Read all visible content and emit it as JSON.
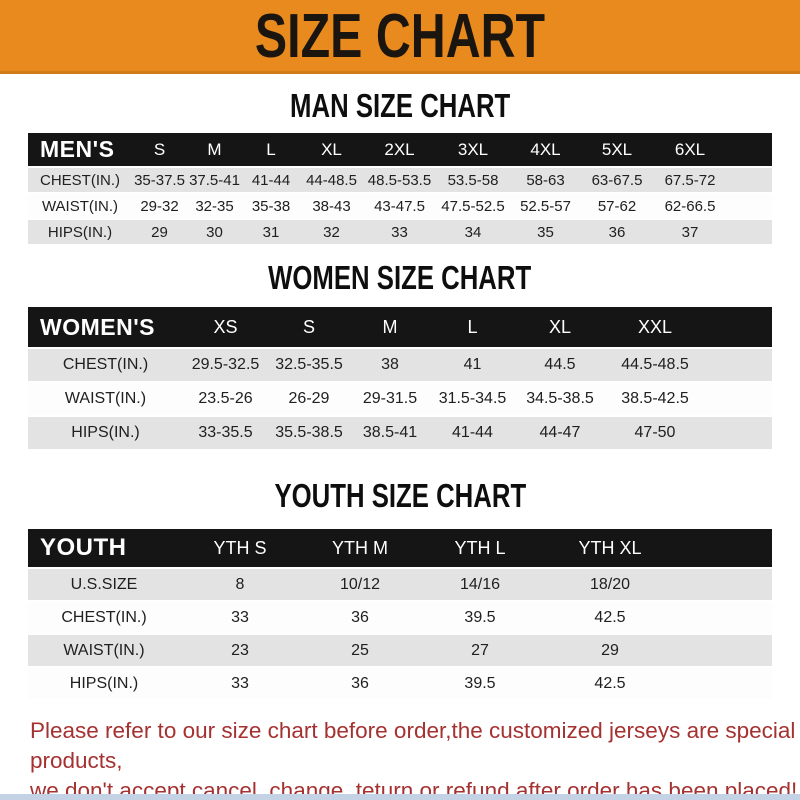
{
  "banner": {
    "title": "SIZE CHART"
  },
  "chart_data": [
    {
      "type": "table",
      "title": "MAN SIZE CHART",
      "columns": [
        "MEN'S",
        "S",
        "M",
        "L",
        "XL",
        "2XL",
        "3XL",
        "4XL",
        "5XL",
        "6XL"
      ],
      "rows": [
        [
          "CHEST(IN.)",
          "35-37.5",
          "37.5-41",
          "41-44",
          "44-48.5",
          "48.5-53.5",
          "53.5-58",
          "58-63",
          "63-67.5",
          "67.5-72"
        ],
        [
          "WAIST(IN.)",
          "29-32",
          "32-35",
          "35-38",
          "38-43",
          "43-47.5",
          "47.5-52.5",
          "52.5-57",
          "57-62",
          "62-66.5"
        ],
        [
          "HIPS(IN.)",
          "29",
          "30",
          "31",
          "32",
          "33",
          "34",
          "35",
          "36",
          "37"
        ]
      ]
    },
    {
      "type": "table",
      "title": "WOMEN SIZE CHART",
      "columns": [
        "WOMEN'S",
        "XS",
        "S",
        "M",
        "L",
        "XL",
        "XXL"
      ],
      "rows": [
        [
          "CHEST(IN.)",
          "29.5-32.5",
          "32.5-35.5",
          "38",
          "41",
          "44.5",
          "44.5-48.5"
        ],
        [
          "WAIST(IN.)",
          "23.5-26",
          "26-29",
          "29-31.5",
          "31.5-34.5",
          "34.5-38.5",
          "38.5-42.5"
        ],
        [
          "HIPS(IN.)",
          "33-35.5",
          "35.5-38.5",
          "38.5-41",
          "41-44",
          "44-47",
          "47-50"
        ]
      ]
    },
    {
      "type": "table",
      "title": "YOUTH SIZE CHART",
      "columns": [
        "YOUTH",
        "YTH S",
        "YTH M",
        "YTH L",
        "YTH XL"
      ],
      "rows": [
        [
          "U.S.SIZE",
          "8",
          "10/12",
          "14/16",
          "18/20"
        ],
        [
          "CHEST(IN.)",
          "33",
          "36",
          "39.5",
          "42.5"
        ],
        [
          "WAIST(IN.)",
          "23",
          "25",
          "27",
          "29"
        ],
        [
          "HIPS(IN.)",
          "33",
          "36",
          "39.5",
          "42.5"
        ]
      ]
    }
  ],
  "footer": {
    "lines": [
      "Please refer to our size chart before order,the customized jerseys are special products,",
      "we don't accept cancel, change, teturn or refund after order has been placed!"
    ]
  },
  "colors": {
    "banner_bg": "#E88A1E",
    "header_bar_bg": "#151515",
    "row_alt_bg": "#E3E3E3",
    "notice_text": "#A53131"
  }
}
